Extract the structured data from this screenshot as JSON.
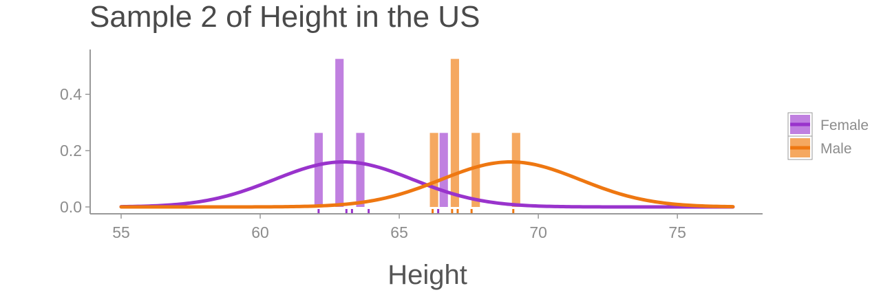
{
  "colors": {
    "female": "#9933cc",
    "female_bar": "#c080e0",
    "male": "#ee7711",
    "male_bar": "#f5a860",
    "axis": "#999999",
    "text": "#8c8c8c"
  },
  "chart_data": {
    "type": "bar",
    "title": "Sample 2 of Height in the US",
    "xlabel": "Height",
    "ylabel": "",
    "xlim": [
      55,
      77
    ],
    "ylim": [
      0,
      0.53
    ],
    "x_ticks": [
      55,
      60,
      65,
      70,
      75
    ],
    "y_ticks": [
      0.0,
      0.2,
      0.4
    ],
    "y_tick_labels": [
      "0.0",
      "0.2",
      "0.4"
    ],
    "bar_width": 0.3,
    "legend_position": "right",
    "series": [
      {
        "name": "Female",
        "histogram": [
          {
            "x": 62.1,
            "y": 0.263
          },
          {
            "x": 62.85,
            "y": 0.526
          },
          {
            "x": 63.6,
            "y": 0.263
          },
          {
            "x": 66.6,
            "y": 0.263
          }
        ],
        "rug": [
          62.1,
          63.1,
          63.3,
          63.9,
          66.4
        ],
        "normal_curve": {
          "mean": 63.0,
          "sd": 2.5
        }
      },
      {
        "name": "Male",
        "histogram": [
          {
            "x": 66.25,
            "y": 0.263
          },
          {
            "x": 67.0,
            "y": 0.526
          },
          {
            "x": 67.75,
            "y": 0.263
          },
          {
            "x": 69.2,
            "y": 0.263
          }
        ],
        "rug": [
          66.2,
          66.9,
          67.1,
          67.6,
          69.1
        ],
        "normal_curve": {
          "mean": 69.0,
          "sd": 2.5
        }
      }
    ]
  }
}
